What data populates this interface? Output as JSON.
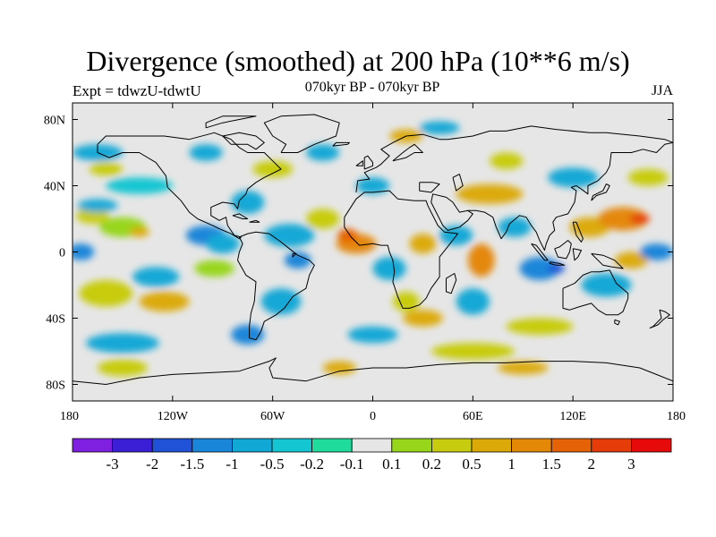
{
  "chart_data": {
    "type": "heatmap",
    "title": "Divergence (smoothed) at 200 hPa (10**6 m/s)",
    "subtitle": "070kyr BP - 070kyr BP",
    "left_label": "Expt = tdwzU-tdwtU",
    "right_label": "JJA",
    "x_range": [
      -180,
      180
    ],
    "y_range": [
      -90,
      90
    ],
    "x_ticks": [
      {
        "value": -180,
        "label": "180"
      },
      {
        "value": -120,
        "label": "120W"
      },
      {
        "value": -60,
        "label": "60W"
      },
      {
        "value": 0,
        "label": "0"
      },
      {
        "value": 60,
        "label": "60E"
      },
      {
        "value": 120,
        "label": "120E"
      },
      {
        "value": 180,
        "label": "180"
      }
    ],
    "y_ticks": [
      {
        "value": 80,
        "label": "80N"
      },
      {
        "value": 40,
        "label": "40N"
      },
      {
        "value": 0,
        "label": "0"
      },
      {
        "value": -40,
        "label": "40S"
      },
      {
        "value": -80,
        "label": "80S"
      }
    ],
    "colorbar": {
      "colors": [
        "#7f1fe0",
        "#3a1fd6",
        "#1f52d6",
        "#1a86d9",
        "#12a8d6",
        "#14c6d2",
        "#1fdc9c",
        "#e6e6e6",
        "#97d61a",
        "#c8cc0e",
        "#dcaa08",
        "#e48808",
        "#e66206",
        "#e63c0a",
        "#e60a0a"
      ],
      "levels": [
        "-3",
        "-2",
        "-1.5",
        "-1",
        "-0.5",
        "-0.2",
        "-0.1",
        "0.1",
        "0.2",
        "0.5",
        "1",
        "1.5",
        "2",
        "3"
      ]
    },
    "field_blobs": [
      {
        "lon": -150,
        "lat": 15,
        "rx": 14,
        "ry": 6,
        "level": 8
      },
      {
        "lon": -140,
        "lat": 12,
        "rx": 6,
        "ry": 3,
        "level": 10
      },
      {
        "lon": -168,
        "lat": 22,
        "rx": 10,
        "ry": 5,
        "level": 9
      },
      {
        "lon": -165,
        "lat": 28,
        "rx": 12,
        "ry": 4,
        "level": 4
      },
      {
        "lon": -160,
        "lat": -25,
        "rx": 16,
        "ry": 8,
        "level": 9
      },
      {
        "lon": -130,
        "lat": -15,
        "rx": 14,
        "ry": 6,
        "level": 4
      },
      {
        "lon": -125,
        "lat": -30,
        "rx": 15,
        "ry": 6,
        "level": 10
      },
      {
        "lon": -140,
        "lat": 40,
        "rx": 20,
        "ry": 5,
        "level": 5
      },
      {
        "lon": -165,
        "lat": 60,
        "rx": 15,
        "ry": 5,
        "level": 4
      },
      {
        "lon": -150,
        "lat": -55,
        "rx": 22,
        "ry": 6,
        "level": 4
      },
      {
        "lon": -150,
        "lat": -70,
        "rx": 15,
        "ry": 5,
        "level": 9
      },
      {
        "lon": -160,
        "lat": 50,
        "rx": 10,
        "ry": 4,
        "level": 9
      },
      {
        "lon": -100,
        "lat": 10,
        "rx": 12,
        "ry": 6,
        "level": 3
      },
      {
        "lon": -90,
        "lat": 5,
        "rx": 10,
        "ry": 6,
        "level": 4
      },
      {
        "lon": -95,
        "lat": -10,
        "rx": 12,
        "ry": 5,
        "level": 8
      },
      {
        "lon": -75,
        "lat": 30,
        "rx": 10,
        "ry": 7,
        "level": 4
      },
      {
        "lon": -60,
        "lat": 50,
        "rx": 12,
        "ry": 5,
        "level": 9
      },
      {
        "lon": -50,
        "lat": 10,
        "rx": 15,
        "ry": 7,
        "level": 4
      },
      {
        "lon": -45,
        "lat": -5,
        "rx": 8,
        "ry": 5,
        "level": 3
      },
      {
        "lon": -55,
        "lat": -30,
        "rx": 12,
        "ry": 8,
        "level": 4
      },
      {
        "lon": -75,
        "lat": -50,
        "rx": 10,
        "ry": 6,
        "level": 3
      },
      {
        "lon": -30,
        "lat": 20,
        "rx": 10,
        "ry": 6,
        "level": 9
      },
      {
        "lon": -10,
        "lat": 5,
        "rx": 12,
        "ry": 6,
        "level": 11
      },
      {
        "lon": -15,
        "lat": 10,
        "rx": 6,
        "ry": 4,
        "level": 12
      },
      {
        "lon": 10,
        "lat": -10,
        "rx": 10,
        "ry": 7,
        "level": 4
      },
      {
        "lon": 20,
        "lat": -30,
        "rx": 8,
        "ry": 6,
        "level": 9
      },
      {
        "lon": 30,
        "lat": -40,
        "rx": 12,
        "ry": 5,
        "level": 10
      },
      {
        "lon": 30,
        "lat": 5,
        "rx": 8,
        "ry": 6,
        "level": 10
      },
      {
        "lon": 50,
        "lat": 10,
        "rx": 10,
        "ry": 6,
        "level": 4
      },
      {
        "lon": 65,
        "lat": -5,
        "rx": 8,
        "ry": 10,
        "level": 11
      },
      {
        "lon": 60,
        "lat": -30,
        "rx": 10,
        "ry": 8,
        "level": 4
      },
      {
        "lon": 70,
        "lat": 35,
        "rx": 20,
        "ry": 6,
        "level": 10
      },
      {
        "lon": 85,
        "lat": 15,
        "rx": 10,
        "ry": 6,
        "level": 4
      },
      {
        "lon": 100,
        "lat": -10,
        "rx": 12,
        "ry": 7,
        "level": 3
      },
      {
        "lon": 110,
        "lat": -10,
        "rx": 5,
        "ry": 3,
        "level": 2
      },
      {
        "lon": 130,
        "lat": 15,
        "rx": 12,
        "ry": 6,
        "level": 10
      },
      {
        "lon": 150,
        "lat": 20,
        "rx": 15,
        "ry": 7,
        "level": 11
      },
      {
        "lon": 160,
        "lat": 20,
        "rx": 6,
        "ry": 3,
        "level": 13
      },
      {
        "lon": 140,
        "lat": -20,
        "rx": 15,
        "ry": 7,
        "level": 4
      },
      {
        "lon": 155,
        "lat": -5,
        "rx": 10,
        "ry": 5,
        "level": 10
      },
      {
        "lon": 120,
        "lat": 45,
        "rx": 15,
        "ry": 6,
        "level": 4
      },
      {
        "lon": 165,
        "lat": 45,
        "rx": 12,
        "ry": 5,
        "level": 9
      },
      {
        "lon": 100,
        "lat": -45,
        "rx": 20,
        "ry": 5,
        "level": 9
      },
      {
        "lon": 60,
        "lat": -60,
        "rx": 25,
        "ry": 5,
        "level": 9
      },
      {
        "lon": 0,
        "lat": -50,
        "rx": 15,
        "ry": 5,
        "level": 4
      },
      {
        "lon": -20,
        "lat": -70,
        "rx": 10,
        "ry": 4,
        "level": 10
      },
      {
        "lon": 90,
        "lat": -70,
        "rx": 15,
        "ry": 4,
        "level": 10
      },
      {
        "lon": 20,
        "lat": 70,
        "rx": 10,
        "ry": 4,
        "level": 10
      },
      {
        "lon": 40,
        "lat": 75,
        "rx": 12,
        "ry": 4,
        "level": 4
      },
      {
        "lon": 80,
        "lat": 55,
        "rx": 10,
        "ry": 5,
        "level": 9
      },
      {
        "lon": -100,
        "lat": 60,
        "rx": 10,
        "ry": 5,
        "level": 4
      },
      {
        "lon": -30,
        "lat": 60,
        "rx": 10,
        "ry": 5,
        "level": 4
      },
      {
        "lon": 0,
        "lat": 40,
        "rx": 10,
        "ry": 5,
        "level": 4
      },
      {
        "lon": 170,
        "lat": 0,
        "rx": 10,
        "ry": 5,
        "level": 3
      },
      {
        "lon": -175,
        "lat": 0,
        "rx": 8,
        "ry": 5,
        "level": 3
      }
    ]
  }
}
